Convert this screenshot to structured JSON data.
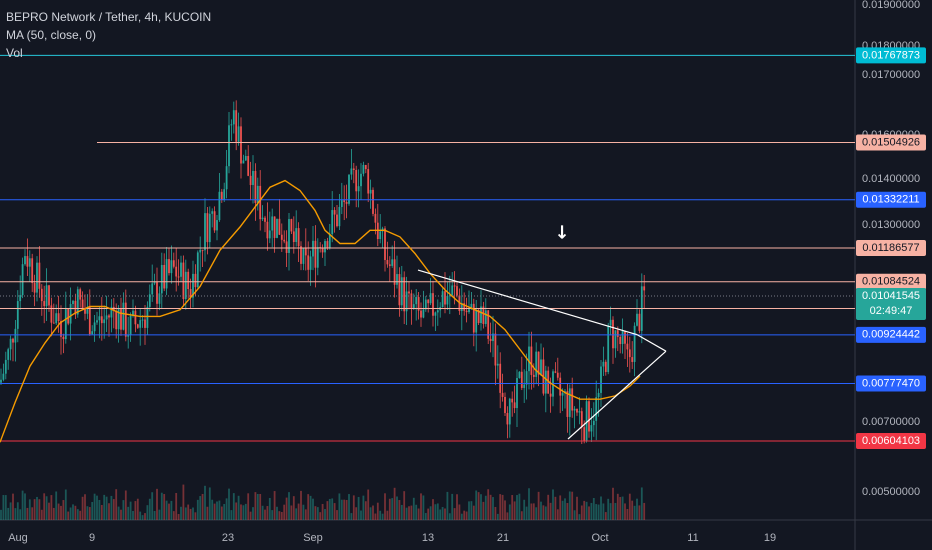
{
  "legend": {
    "symbol": "BEPRO Network / Tether, 4h, KUCOIN",
    "ma": "MA (50, close, 0)",
    "vol": "Vol"
  },
  "chart_data": {
    "type": "candlestick",
    "title": "BEPRO Network / Tether, 4h, KUCOIN",
    "ylim": [
      0.0045,
      0.0192
    ],
    "grid": false,
    "y_ticks": [
      "0.01900000",
      "0.01800000",
      "0.01700000",
      "0.01600000",
      "0.01400000",
      "0.01300000",
      "0.00700000",
      "0.00500000"
    ],
    "x_ticks": [
      "Aug",
      "9",
      "23",
      "Sep",
      "13",
      "21",
      "Oct",
      "11",
      "19"
    ],
    "price_lines": [
      {
        "value": 0.01767873,
        "label": "0.01767873",
        "color": "#26c6da",
        "tag_bg": "#00bcd4",
        "tag_fg": "#ffffff"
      },
      {
        "value": 0.01504926,
        "label": "0.01504926",
        "color": "#f7b2a4",
        "tag_bg": "#f7b2a4",
        "tag_fg": "#131722"
      },
      {
        "value": 0.01332211,
        "label": "0.01332211",
        "color": "#2962ff",
        "tag_bg": "#2962ff",
        "tag_fg": "#ffffff"
      },
      {
        "value": 0.01186577,
        "label": "0.01186577",
        "color": "#f7b2a4",
        "tag_bg": "#f7b2a4",
        "tag_fg": "#131722"
      },
      {
        "value": 0.01084524,
        "label": "0.01084524",
        "color": "#f7b2a4",
        "tag_bg": "#f7b2a4",
        "tag_fg": "#131722"
      },
      {
        "value": 0.01004028,
        "label": "0.01004028",
        "color": "#f7b2a4",
        "tag_bg": "#f7b2a4",
        "tag_fg": "#131722"
      },
      {
        "value": 0.00924442,
        "label": "0.00924442",
        "color": "#2962ff",
        "tag_bg": "#2962ff",
        "tag_fg": "#ffffff"
      },
      {
        "value": 0.0077747,
        "label": "0.00777470",
        "color": "#2962ff",
        "tag_bg": "#2962ff",
        "tag_fg": "#ffffff"
      },
      {
        "value": 0.00604103,
        "label": "0.00604103",
        "color": "#f23645",
        "tag_bg": "#f23645",
        "tag_fg": "#ffffff"
      }
    ],
    "last_price": {
      "value": 0.01041545,
      "label": "0.01041545",
      "countdown": "02:49:47",
      "color": "#26a69a"
    },
    "series": [
      {
        "name": "MA (50, close, 0)",
        "color": "#f59b00",
        "points": [
          [
            0,
            0.006
          ],
          [
            15,
            0.0072
          ],
          [
            30,
            0.0083
          ],
          [
            45,
            0.009
          ],
          [
            60,
            0.0096
          ],
          [
            75,
            0.0099
          ],
          [
            90,
            0.0101
          ],
          [
            105,
            0.0101
          ],
          [
            120,
            0.0099
          ],
          [
            140,
            0.0098
          ],
          [
            160,
            0.0098
          ],
          [
            180,
            0.01
          ],
          [
            200,
            0.0107
          ],
          [
            220,
            0.0118
          ],
          [
            240,
            0.0125
          ],
          [
            255,
            0.0131
          ],
          [
            270,
            0.0137
          ],
          [
            285,
            0.0139
          ],
          [
            300,
            0.0136
          ],
          [
            315,
            0.013
          ],
          [
            325,
            0.0124
          ],
          [
            340,
            0.012
          ],
          [
            355,
            0.012
          ],
          [
            370,
            0.0124
          ],
          [
            385,
            0.0124
          ],
          [
            400,
            0.0122
          ],
          [
            415,
            0.0117
          ],
          [
            430,
            0.0111
          ],
          [
            445,
            0.0106
          ],
          [
            460,
            0.0102
          ],
          [
            475,
            0.01
          ],
          [
            490,
            0.0098
          ],
          [
            505,
            0.0094
          ],
          [
            520,
            0.0088
          ],
          [
            535,
            0.0082
          ],
          [
            550,
            0.0078
          ],
          [
            565,
            0.0075
          ],
          [
            580,
            0.0073
          ],
          [
            600,
            0.0073
          ],
          [
            615,
            0.0074
          ],
          [
            630,
            0.0077
          ],
          [
            640,
            0.008
          ]
        ]
      }
    ],
    "trendlines": [
      {
        "points": [
          [
            418,
            0.0112
          ],
          [
            637,
            0.00925
          ]
        ],
        "color": "#ffffff"
      },
      {
        "points": [
          [
            568,
            0.0061
          ],
          [
            666,
            0.00875
          ]
        ],
        "color": "#ffffff"
      },
      {
        "points": [
          [
            637,
            0.00925
          ],
          [
            666,
            0.00875
          ]
        ],
        "color": "#ffffff"
      }
    ],
    "arrow": {
      "x": 562,
      "value": 0.0123,
      "glyph": "🡇"
    },
    "colors": {
      "up": "#26a69a",
      "down": "#ef5350",
      "background": "#131722",
      "axis": "#363a45"
    }
  }
}
